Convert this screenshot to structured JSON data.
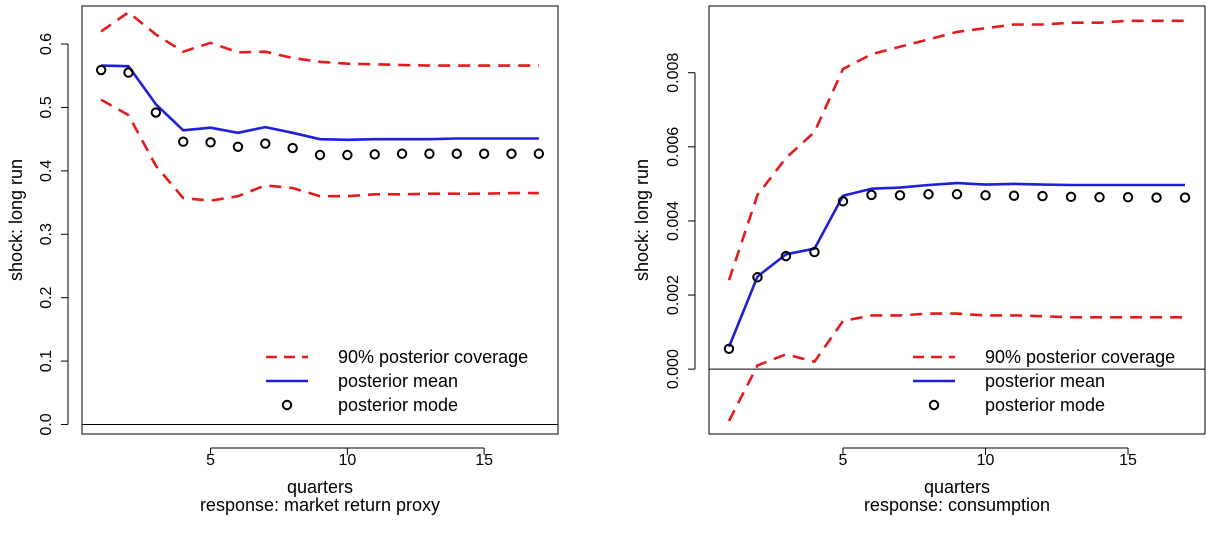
{
  "chart_data": [
    {
      "type": "line",
      "ylabel": "shock: long run",
      "xlabel": "quarters",
      "sublabel": "response: market return proxy",
      "xlim": [
        0.3,
        17.7
      ],
      "ylim": [
        -0.015,
        0.66
      ],
      "x_ticks": [
        5,
        10,
        15
      ],
      "y_ticks": [
        0.0,
        0.1,
        0.2,
        0.3,
        0.4,
        0.5,
        0.6
      ],
      "y_tick_labels": [
        "0.0",
        "0.1",
        "0.2",
        "0.3",
        "0.4",
        "0.5",
        "0.6"
      ],
      "hline": 0,
      "legend": {
        "position": "bottom-right",
        "entries": [
          {
            "label": "90% posterior coverage",
            "style": "dashed",
            "color": "#e41a1c"
          },
          {
            "label": "posterior mean",
            "style": "solid",
            "color": "#1f1fd6"
          },
          {
            "label": "posterior mode",
            "style": "circle",
            "color": "#000000"
          }
        ]
      },
      "x": [
        1,
        2,
        3,
        4,
        5,
        6,
        7,
        8,
        9,
        10,
        11,
        12,
        13,
        14,
        15,
        16,
        17
      ],
      "series": [
        {
          "name": "90% posterior coverage",
          "style": "dashed",
          "color": "#e41a1c",
          "values": [
            0.62,
            0.65,
            0.615,
            0.588,
            0.602,
            0.587,
            0.588,
            0.578,
            0.572,
            0.569,
            0.568,
            0.567,
            0.566,
            0.566,
            0.566,
            0.566,
            0.566
          ]
        },
        {
          "name": "90% posterior coverage lower",
          "style": "dashed",
          "color": "#e41a1c",
          "values": [
            0.512,
            0.488,
            0.408,
            0.357,
            0.353,
            0.36,
            0.377,
            0.373,
            0.36,
            0.36,
            0.363,
            0.363,
            0.364,
            0.364,
            0.364,
            0.365,
            0.365
          ]
        },
        {
          "name": "posterior mean",
          "style": "solid",
          "color": "#1f1fd6",
          "values": [
            0.566,
            0.565,
            0.505,
            0.464,
            0.468,
            0.46,
            0.469,
            0.46,
            0.45,
            0.449,
            0.45,
            0.45,
            0.45,
            0.451,
            0.451,
            0.451,
            0.451
          ]
        },
        {
          "name": "posterior mode",
          "style": "circle",
          "color": "#000000",
          "values": [
            0.559,
            0.555,
            0.492,
            0.446,
            0.445,
            0.438,
            0.443,
            0.436,
            0.425,
            0.425,
            0.426,
            0.427,
            0.427,
            0.427,
            0.427,
            0.427,
            0.427
          ]
        }
      ]
    },
    {
      "type": "line",
      "ylabel": "shock: long run",
      "xlabel": "quarters",
      "sublabel": "response: consumption",
      "xlim": [
        0.3,
        17.7
      ],
      "ylim": [
        -0.00175,
        0.0098
      ],
      "x_ticks": [
        5,
        10,
        15
      ],
      "y_ticks": [
        0.0,
        0.002,
        0.004,
        0.006,
        0.008
      ],
      "y_tick_labels": [
        "0.000",
        "0.002",
        "0.004",
        "0.006",
        "0.008"
      ],
      "hline": 0,
      "legend": {
        "position": "bottom-right",
        "entries": [
          {
            "label": "90% posterior coverage",
            "style": "dashed",
            "color": "#e41a1c"
          },
          {
            "label": "posterior mean",
            "style": "solid",
            "color": "#1f1fd6"
          },
          {
            "label": "posterior mode",
            "style": "circle",
            "color": "#000000"
          }
        ]
      },
      "x": [
        1,
        2,
        3,
        4,
        5,
        6,
        7,
        8,
        9,
        10,
        11,
        12,
        13,
        14,
        15,
        16,
        17
      ],
      "series": [
        {
          "name": "90% posterior coverage",
          "style": "dashed",
          "color": "#e41a1c",
          "values": [
            0.0024,
            0.0047,
            0.0057,
            0.0064,
            0.0081,
            0.0085,
            0.0087,
            0.0089,
            0.0091,
            0.0092,
            0.0093,
            0.0093,
            0.00935,
            0.00935,
            0.0094,
            0.0094,
            0.0094
          ]
        },
        {
          "name": "90% posterior coverage lower",
          "style": "dashed",
          "color": "#e41a1c",
          "values": [
            -0.0014,
            0.0001,
            0.0004,
            0.0002,
            0.0013,
            0.00145,
            0.00145,
            0.0015,
            0.0015,
            0.00145,
            0.00145,
            0.00143,
            0.0014,
            0.0014,
            0.0014,
            0.0014,
            0.0014
          ]
        },
        {
          "name": "posterior mean",
          "style": "solid",
          "color": "#1f1fd6",
          "values": [
            0.0006,
            0.0025,
            0.0031,
            0.00325,
            0.00468,
            0.00487,
            0.0049,
            0.00497,
            0.00502,
            0.00498,
            0.005,
            0.00498,
            0.00497,
            0.00497,
            0.00497,
            0.00497,
            0.00497
          ]
        },
        {
          "name": "posterior mode",
          "style": "circle",
          "color": "#000000",
          "values": [
            0.00055,
            0.00248,
            0.00305,
            0.00316,
            0.00453,
            0.0047,
            0.00469,
            0.00472,
            0.00472,
            0.00469,
            0.00468,
            0.00467,
            0.00465,
            0.00464,
            0.00464,
            0.00463,
            0.00463
          ]
        }
      ]
    }
  ]
}
